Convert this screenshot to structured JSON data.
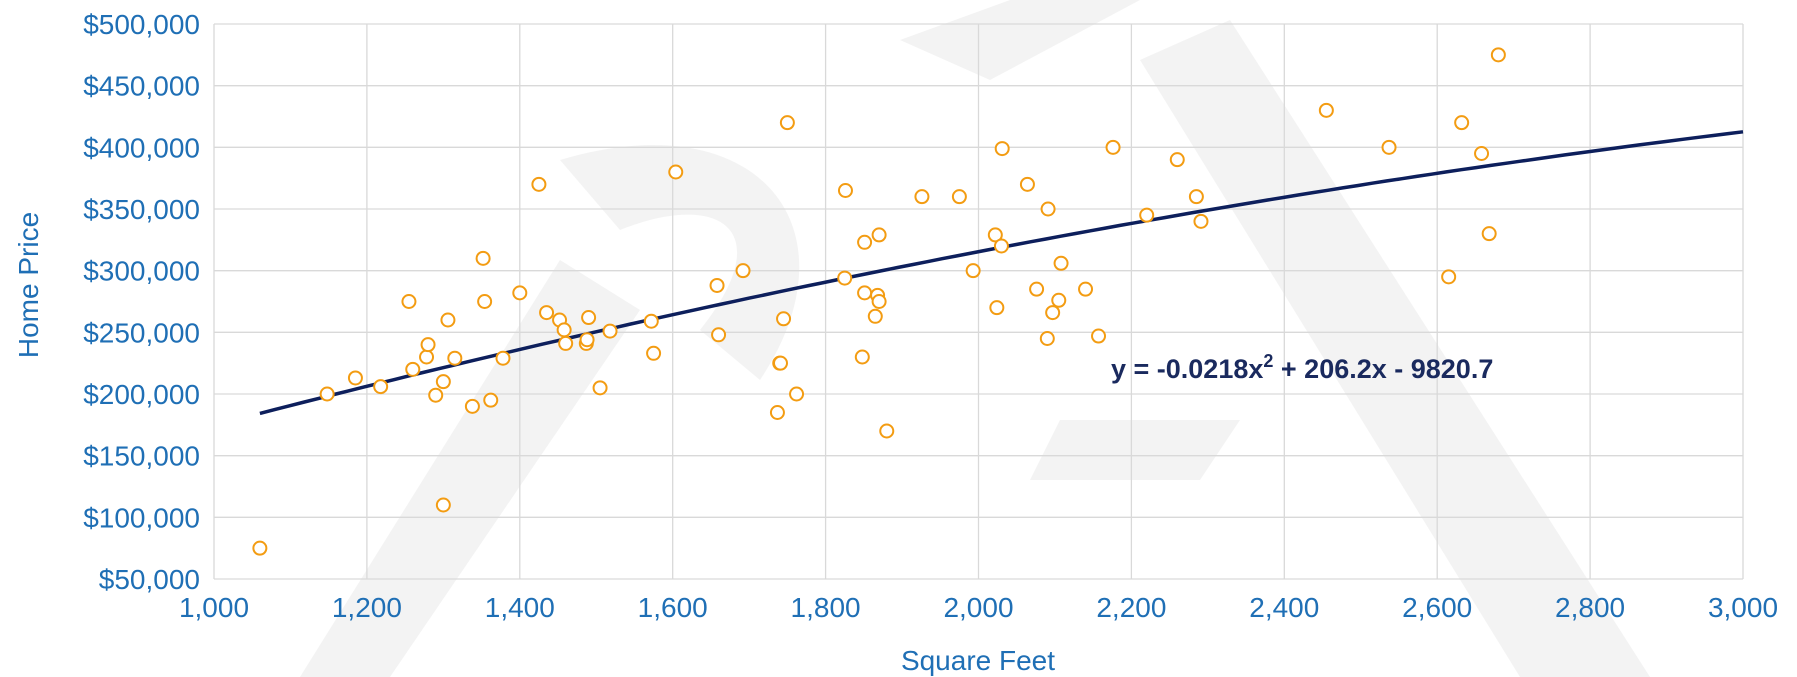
{
  "chart_data": {
    "type": "scatter",
    "xlabel": "Square Feet",
    "ylabel": "Home Price",
    "xlim": [
      1000,
      3000
    ],
    "ylim": [
      50000,
      500000
    ],
    "x_ticks": [
      1000,
      1200,
      1400,
      1600,
      1800,
      2000,
      2200,
      2400,
      2600,
      2800,
      3000
    ],
    "y_ticks": [
      50000,
      100000,
      150000,
      200000,
      250000,
      300000,
      350000,
      400000,
      450000,
      500000
    ],
    "x_tick_labels": [
      "1,000",
      "1,200",
      "1,400",
      "1,600",
      "1,800",
      "2,000",
      "2,200",
      "2,400",
      "2,600",
      "2,800",
      "3,000"
    ],
    "y_tick_labels": [
      "$50,000",
      "$100,000",
      "$150,000",
      "$200,000",
      "$250,000",
      "$300,000",
      "$350,000",
      "$400,000",
      "$450,000",
      "$500,000"
    ],
    "grid": true,
    "marker_color": "#f39c12",
    "trendline_color": "#0d1f5c",
    "grid_color": "#d9d9d9",
    "trendline": {
      "type": "polynomial",
      "coefficients": [
        -0.0218,
        206.2,
        -9820.7
      ],
      "x_range": [
        1060,
        3000
      ],
      "equation": {
        "prefix": "y = -0.0218x",
        "exp": "2",
        "suffix": " + 206.2x - 9820.7"
      }
    },
    "watermark": "DRAFT",
    "points": [
      [
        1060,
        75000
      ],
      [
        1148,
        200000
      ],
      [
        1185,
        213000
      ],
      [
        1218,
        206000
      ],
      [
        1255,
        275000
      ],
      [
        1260,
        220000
      ],
      [
        1278,
        230000
      ],
      [
        1280,
        240000
      ],
      [
        1290,
        199000
      ],
      [
        1300,
        210000
      ],
      [
        1300,
        110000
      ],
      [
        1306,
        260000
      ],
      [
        1315,
        229000
      ],
      [
        1338,
        190000
      ],
      [
        1352,
        310000
      ],
      [
        1354,
        275000
      ],
      [
        1362,
        195000
      ],
      [
        1378,
        229000
      ],
      [
        1400,
        282000
      ],
      [
        1425,
        370000
      ],
      [
        1435,
        266000
      ],
      [
        1452,
        260000
      ],
      [
        1458,
        252000
      ],
      [
        1460,
        241000
      ],
      [
        1487,
        241000
      ],
      [
        1488,
        244000
      ],
      [
        1490,
        262000
      ],
      [
        1505,
        205000
      ],
      [
        1518,
        251000
      ],
      [
        1572,
        259000
      ],
      [
        1575,
        233000
      ],
      [
        1604,
        380000
      ],
      [
        1658,
        288000
      ],
      [
        1660,
        248000
      ],
      [
        1692,
        300000
      ],
      [
        1737,
        185000
      ],
      [
        1740,
        225000
      ],
      [
        1741,
        225000
      ],
      [
        1745,
        261000
      ],
      [
        1750,
        420000
      ],
      [
        1762,
        200000
      ],
      [
        1825,
        294000
      ],
      [
        1826,
        365000
      ],
      [
        1848,
        230000
      ],
      [
        1851,
        282000
      ],
      [
        1851,
        323000
      ],
      [
        1865,
        263000
      ],
      [
        1868,
        280000
      ],
      [
        1870,
        329000
      ],
      [
        1870,
        275000
      ],
      [
        1880,
        170000
      ],
      [
        1926,
        360000
      ],
      [
        1975,
        360000
      ],
      [
        1993,
        300000
      ],
      [
        2022,
        329000
      ],
      [
        2024,
        270000
      ],
      [
        2030,
        320000
      ],
      [
        2031,
        399000
      ],
      [
        2064,
        370000
      ],
      [
        2076,
        285000
      ],
      [
        2090,
        245000
      ],
      [
        2091,
        350000
      ],
      [
        2097,
        266000
      ],
      [
        2105,
        276000
      ],
      [
        2108,
        306000
      ],
      [
        2140,
        285000
      ],
      [
        2157,
        247000
      ],
      [
        2176,
        400000
      ],
      [
        2220,
        345000
      ],
      [
        2260,
        390000
      ],
      [
        2285,
        360000
      ],
      [
        2291,
        340000
      ],
      [
        2455,
        430000
      ],
      [
        2537,
        400000
      ],
      [
        2615,
        295000
      ],
      [
        2632,
        420000
      ],
      [
        2658,
        395000
      ],
      [
        2668,
        330000
      ],
      [
        2680,
        475000
      ]
    ]
  }
}
